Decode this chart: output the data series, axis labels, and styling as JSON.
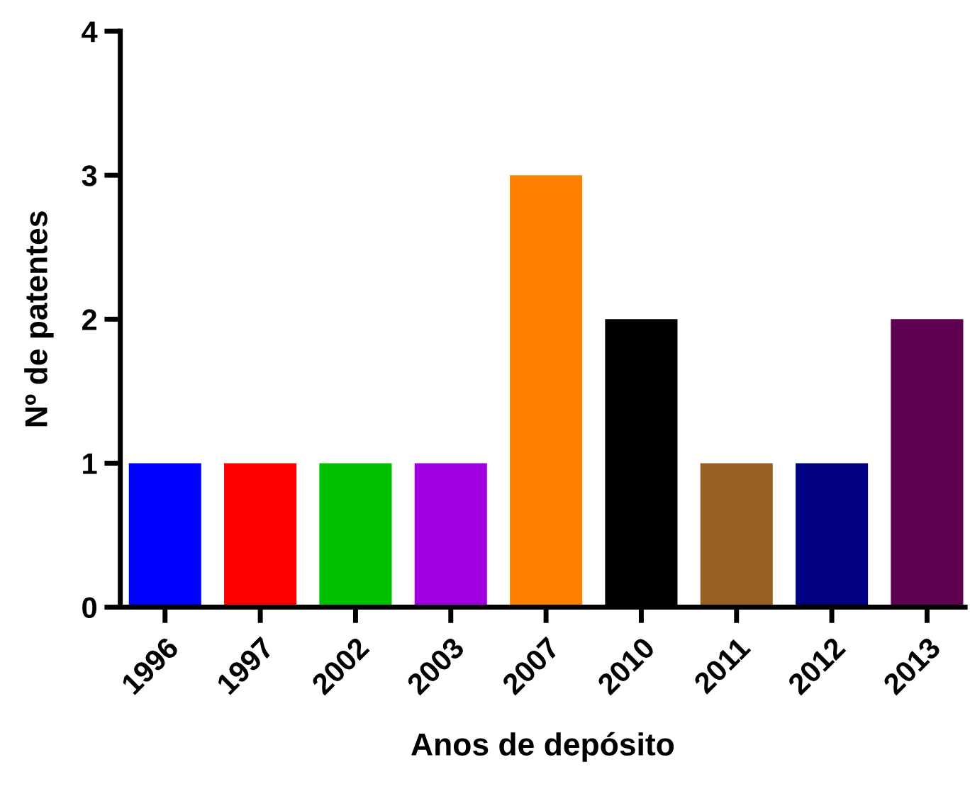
{
  "chart_data": {
    "type": "bar",
    "xlabel": "Anos de depósito",
    "ylabel": "Nº de patentes",
    "categories": [
      "1996",
      "1997",
      "2002",
      "2003",
      "2007",
      "2010",
      "2011",
      "2012",
      "2013"
    ],
    "values": [
      1,
      1,
      1,
      1,
      3,
      2,
      1,
      1,
      2
    ],
    "colors": [
      "#0000ff",
      "#ff0000",
      "#00c000",
      "#a000e0",
      "#ff8000",
      "#000000",
      "#956020",
      "#000080",
      "#600050"
    ],
    "ylim": [
      0,
      4
    ],
    "yticks": [
      0,
      1,
      2,
      3,
      4
    ],
    "grid": false,
    "legend": false
  }
}
